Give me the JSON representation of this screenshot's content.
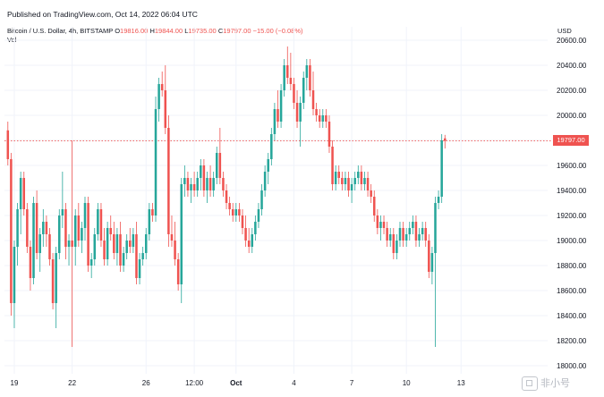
{
  "header": {
    "published": "Published on TradingView.com, Oct 14, 2022 06:04 UTC"
  },
  "legend": {
    "symbol": "Bitcoin / U.S. Dollar, 4h, BITSTAMP",
    "o_label": "O",
    "o_value": "19816.00",
    "h_label": "H",
    "h_value": "19844.00",
    "l_label": "L",
    "l_value": "19735.00",
    "c_label": "C",
    "c_value": "19797.00",
    "change": "−15.00 (−0.08%)",
    "vol_label": "Vol"
  },
  "price_axis": {
    "currency": "USD",
    "last_price_badge": "19797.00"
  },
  "watermark": {
    "text": "非小号"
  },
  "colors": {
    "up": "#26a69a",
    "down": "#ef5350",
    "grid": "#f0f3fa",
    "text": "#131722"
  },
  "chart_data": {
    "type": "candlestick",
    "title": "Bitcoin / U.S. Dollar, 4h, BITSTAMP",
    "ylim": [
      18000,
      20700
    ],
    "y_ticks": [
      20600,
      20400,
      20200,
      20000,
      19800,
      19600,
      19400,
      19200,
      19000,
      18800,
      18600,
      18400,
      18200,
      18000
    ],
    "y_tick_labels": [
      "20600.00",
      "20400.00",
      "20200.00",
      "20000.00",
      "19800.00",
      "19600.00",
      "19400.00",
      "19200.00",
      "19000.00",
      "18800.00",
      "18600.00",
      "18400.00",
      "18200.00",
      "18000.00"
    ],
    "x_tick_labels": [
      {
        "label": "19",
        "i": 2
      },
      {
        "label": "22",
        "i": 20
      },
      {
        "label": "26",
        "i": 43
      },
      {
        "label": "12:00",
        "i": 58
      },
      {
        "label": "Oct",
        "i": 71,
        "bold": true
      },
      {
        "label": "4",
        "i": 89
      },
      {
        "label": "7",
        "i": 107
      },
      {
        "label": "10",
        "i": 124
      },
      {
        "label": "13",
        "i": 141
      }
    ],
    "last_price": 19797,
    "ohlc": [
      [
        19880,
        19950,
        19600,
        19650
      ],
      [
        19650,
        19700,
        18400,
        18500
      ],
      [
        18500,
        19000,
        18300,
        18950
      ],
      [
        18950,
        19300,
        18800,
        19250
      ],
      [
        19250,
        19550,
        19050,
        19500
      ],
      [
        19500,
        19550,
        19200,
        19250
      ],
      [
        19250,
        19300,
        18900,
        18950
      ],
      [
        18950,
        19000,
        18600,
        18700
      ],
      [
        18700,
        19350,
        18650,
        19300
      ],
      [
        19300,
        19400,
        18850,
        18900
      ],
      [
        18900,
        19100,
        18750,
        19050
      ],
      [
        19050,
        19250,
        18950,
        19150
      ],
      [
        19150,
        19200,
        18950,
        19050
      ],
      [
        19050,
        19100,
        18800,
        18850
      ],
      [
        18850,
        18900,
        18450,
        18500
      ],
      [
        18500,
        18950,
        18300,
        18900
      ],
      [
        18900,
        19250,
        18850,
        19200
      ],
      [
        19200,
        19550,
        19100,
        19250
      ],
      [
        19250,
        19300,
        18850,
        18950
      ],
      [
        18950,
        19050,
        18800,
        19000
      ],
      [
        19000,
        19800,
        18150,
        18950
      ],
      [
        18950,
        19250,
        18800,
        19200
      ],
      [
        19200,
        19300,
        18950,
        19000
      ],
      [
        19000,
        19150,
        18900,
        19100
      ],
      [
        19100,
        19350,
        19000,
        19300
      ],
      [
        19300,
        19350,
        18750,
        18800
      ],
      [
        18800,
        18900,
        18700,
        18850
      ],
      [
        18850,
        19100,
        18800,
        19050
      ],
      [
        19050,
        19300,
        19000,
        19250
      ],
      [
        19250,
        19300,
        18950,
        19000
      ],
      [
        19000,
        19100,
        18800,
        18850
      ],
      [
        18850,
        19150,
        18800,
        19100
      ],
      [
        19100,
        19200,
        19000,
        19050
      ],
      [
        19050,
        19150,
        18850,
        18900
      ],
      [
        18900,
        19100,
        18800,
        19050
      ],
      [
        19050,
        19150,
        18750,
        18800
      ],
      [
        18800,
        18950,
        18750,
        18900
      ],
      [
        18900,
        19050,
        18850,
        19000
      ],
      [
        19000,
        19100,
        18900,
        18950
      ],
      [
        18950,
        19100,
        18900,
        19050
      ],
      [
        19050,
        19150,
        18650,
        18700
      ],
      [
        18700,
        18900,
        18650,
        18850
      ],
      [
        18850,
        18950,
        18800,
        18900
      ],
      [
        18900,
        19100,
        18850,
        19050
      ],
      [
        19050,
        19300,
        19000,
        19250
      ],
      [
        19250,
        19300,
        19150,
        19200
      ],
      [
        19200,
        20150,
        19150,
        20050
      ],
      [
        20050,
        20300,
        19950,
        20250
      ],
      [
        20250,
        20350,
        20150,
        20200
      ],
      [
        20200,
        20400,
        19850,
        19900
      ],
      [
        19900,
        20000,
        18950,
        19050
      ],
      [
        19050,
        19200,
        18950,
        19000
      ],
      [
        19000,
        19150,
        18800,
        18850
      ],
      [
        18850,
        18900,
        18600,
        18650
      ],
      [
        18650,
        19500,
        18500,
        19450
      ],
      [
        19450,
        19600,
        19350,
        19500
      ],
      [
        19500,
        19550,
        19350,
        19400
      ],
      [
        19400,
        19500,
        19300,
        19450
      ],
      [
        19450,
        19550,
        19350,
        19400
      ],
      [
        19400,
        19550,
        19350,
        19500
      ],
      [
        19500,
        19650,
        19400,
        19600
      ],
      [
        19600,
        19650,
        19350,
        19400
      ],
      [
        19400,
        19550,
        19300,
        19500
      ],
      [
        19500,
        19600,
        19350,
        19400
      ],
      [
        19400,
        19550,
        19350,
        19500
      ],
      [
        19500,
        19750,
        19450,
        19700
      ],
      [
        19700,
        19900,
        19450,
        19500
      ],
      [
        19500,
        19550,
        19350,
        19400
      ],
      [
        19400,
        19450,
        19250,
        19300
      ],
      [
        19300,
        19350,
        19200,
        19250
      ],
      [
        19250,
        19300,
        19150,
        19200
      ],
      [
        19200,
        19300,
        19150,
        19250
      ],
      [
        19250,
        19300,
        19150,
        19200
      ],
      [
        19200,
        19250,
        19050,
        19100
      ],
      [
        19100,
        19200,
        18950,
        19000
      ],
      [
        19000,
        19100,
        18900,
        18950
      ],
      [
        18950,
        19100,
        18900,
        19050
      ],
      [
        19050,
        19200,
        19000,
        19150
      ],
      [
        19150,
        19300,
        19100,
        19250
      ],
      [
        19250,
        19450,
        19200,
        19400
      ],
      [
        19400,
        19600,
        19350,
        19550
      ],
      [
        19550,
        19700,
        19450,
        19650
      ],
      [
        19650,
        19900,
        19600,
        19850
      ],
      [
        19850,
        20100,
        19800,
        20050
      ],
      [
        20050,
        20200,
        19900,
        19950
      ],
      [
        19950,
        20250,
        19900,
        20200
      ],
      [
        20200,
        20450,
        20150,
        20400
      ],
      [
        20400,
        20550,
        20250,
        20300
      ],
      [
        20300,
        20500,
        20200,
        20250
      ],
      [
        20250,
        20300,
        20050,
        20100
      ],
      [
        20100,
        20200,
        19900,
        19950
      ],
      [
        19950,
        20150,
        19750,
        20100
      ],
      [
        20100,
        20350,
        20050,
        20300
      ],
      [
        20300,
        20450,
        20200,
        20400
      ],
      [
        20400,
        20450,
        20150,
        20200
      ],
      [
        20200,
        20350,
        20000,
        20050
      ],
      [
        20050,
        20100,
        19950,
        20000
      ],
      [
        20000,
        20050,
        19900,
        19950
      ],
      [
        19950,
        20050,
        19900,
        20000
      ],
      [
        20000,
        20050,
        19900,
        19950
      ],
      [
        19950,
        20000,
        19700,
        19750
      ],
      [
        19750,
        19800,
        19400,
        19450
      ],
      [
        19450,
        19600,
        19400,
        19550
      ],
      [
        19550,
        19600,
        19450,
        19500
      ],
      [
        19500,
        19550,
        19400,
        19450
      ],
      [
        19450,
        19550,
        19400,
        19500
      ],
      [
        19500,
        19550,
        19350,
        19400
      ],
      [
        19400,
        19500,
        19300,
        19450
      ],
      [
        19450,
        19550,
        19400,
        19500
      ],
      [
        19500,
        19600,
        19450,
        19550
      ],
      [
        19550,
        19600,
        19400,
        19450
      ],
      [
        19450,
        19550,
        19400,
        19500
      ],
      [
        19500,
        19550,
        19350,
        19400
      ],
      [
        19400,
        19450,
        19300,
        19350
      ],
      [
        19350,
        19400,
        19150,
        19200
      ],
      [
        19200,
        19250,
        19050,
        19100
      ],
      [
        19100,
        19200,
        19000,
        19150
      ],
      [
        19150,
        19200,
        19050,
        19100
      ],
      [
        19100,
        19150,
        18950,
        19000
      ],
      [
        19000,
        19100,
        18950,
        19050
      ],
      [
        19050,
        19100,
        18850,
        18900
      ],
      [
        18900,
        19050,
        18850,
        19000
      ],
      [
        19000,
        19150,
        18950,
        19100
      ],
      [
        19100,
        19150,
        18950,
        19000
      ],
      [
        19000,
        19100,
        18950,
        19050
      ],
      [
        19050,
        19150,
        19000,
        19100
      ],
      [
        19100,
        19200,
        19050,
        19150
      ],
      [
        19150,
        19200,
        18950,
        19000
      ],
      [
        19000,
        19100,
        18950,
        19050
      ],
      [
        19050,
        19150,
        19000,
        19100
      ],
      [
        19100,
        19150,
        18950,
        19000
      ],
      [
        19000,
        19050,
        18700,
        18750
      ],
      [
        18750,
        18950,
        18650,
        18900
      ],
      [
        18900,
        19350,
        18150,
        19300
      ],
      [
        19300,
        19400,
        19250,
        19350
      ],
      [
        19350,
        19850,
        19300,
        19800
      ],
      [
        19816,
        19844,
        19735,
        19797
      ]
    ]
  }
}
